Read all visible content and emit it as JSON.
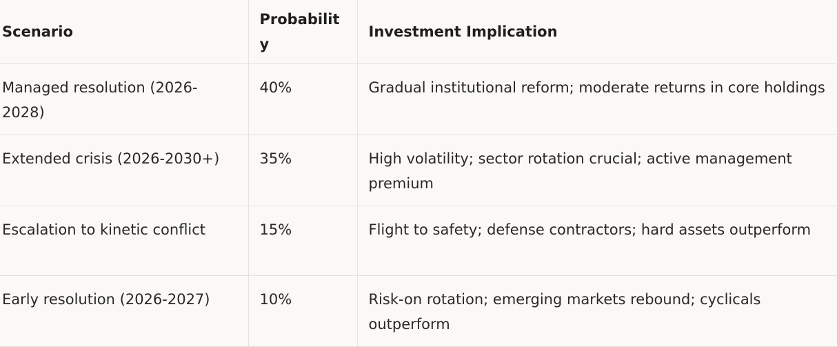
{
  "table": {
    "header": [
      "Scenario",
      "Probability",
      "Investment Implication"
    ],
    "rows": [
      [
        "Managed resolution (2026-2028)",
        "40%",
        "Gradual institutional reform; moderate returns in core holdings"
      ],
      [
        "Extended crisis (2026-2030+)",
        "35%",
        "High volatility; sector rotation crucial; active management premium"
      ],
      [
        "Escalation to kinetic conflict",
        "15%",
        "Flight to safety; defense contractors; hard assets outperform"
      ],
      [
        "Early resolution (2026-2027)",
        "10%",
        "Risk-on rotation; emerging markets rebound; cyclicals outperform"
      ]
    ]
  }
}
